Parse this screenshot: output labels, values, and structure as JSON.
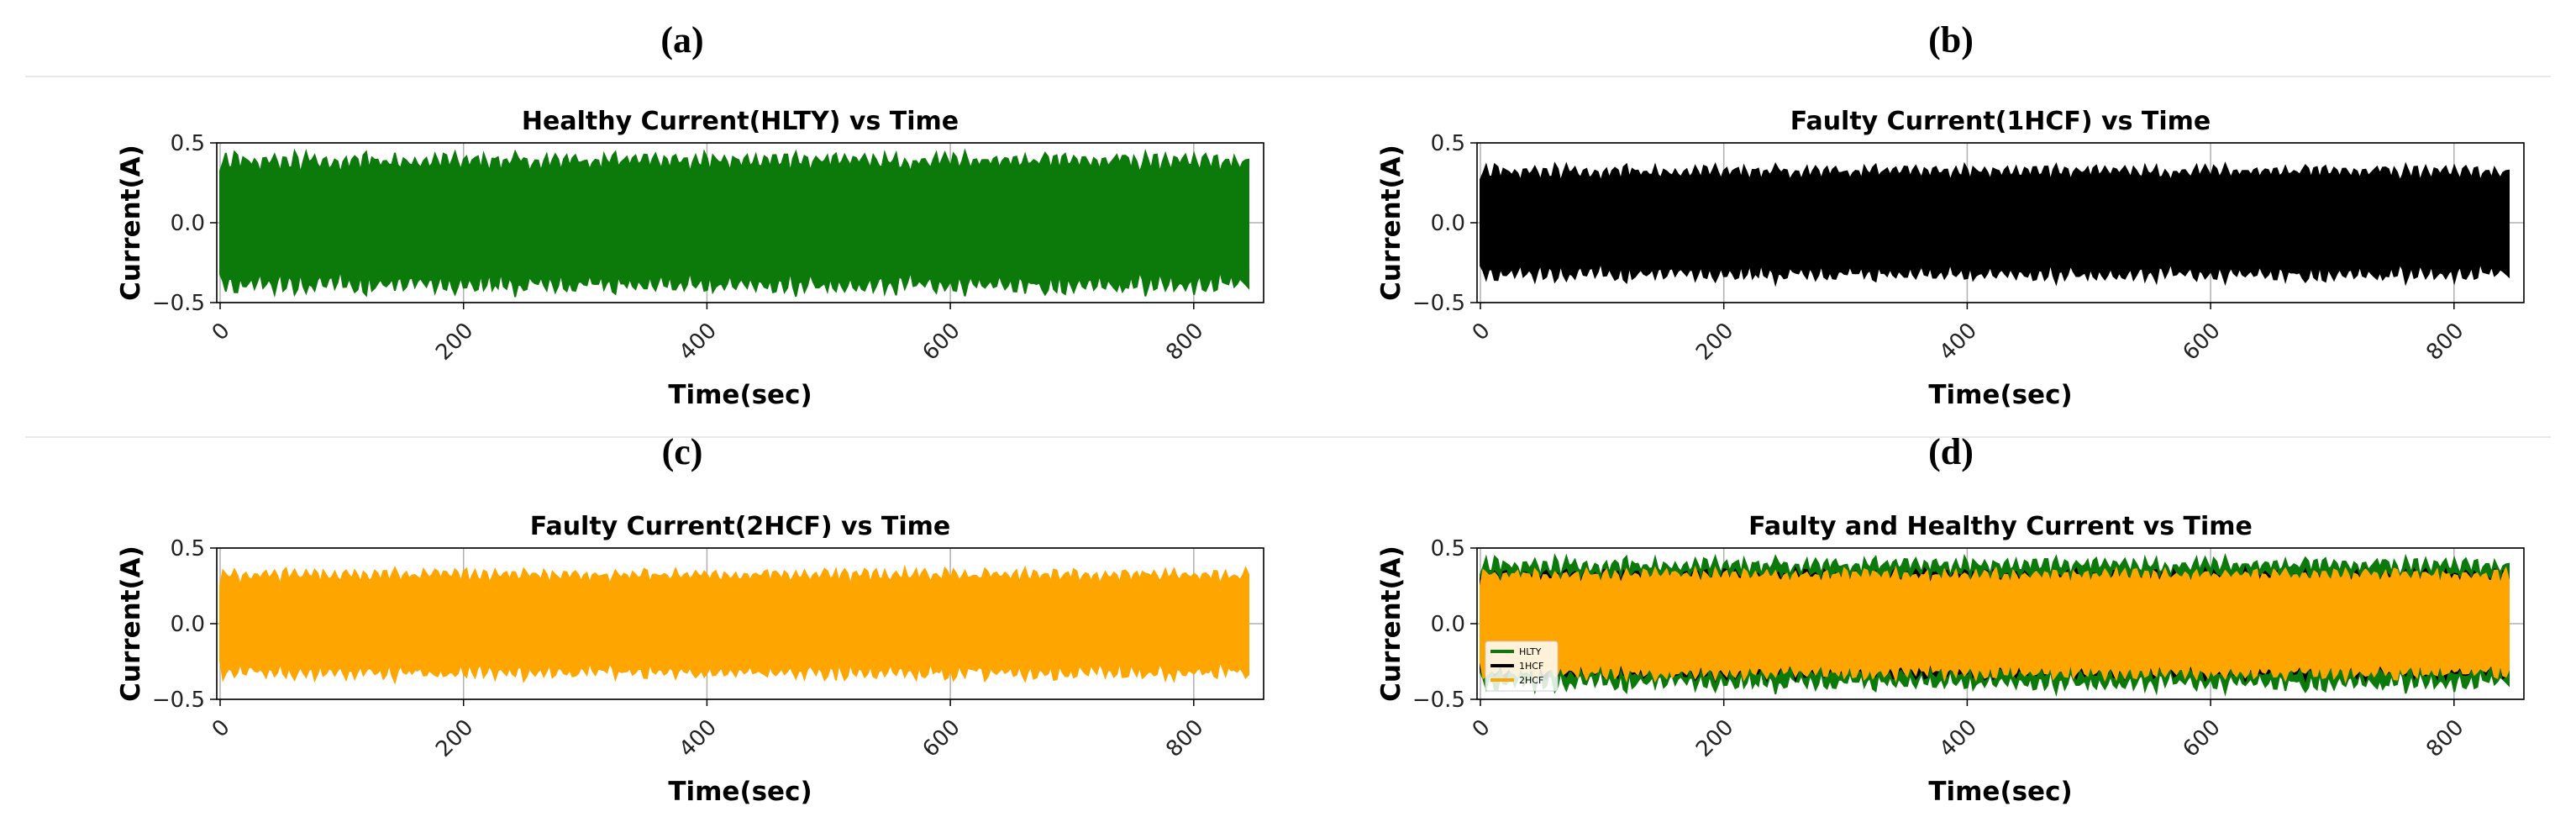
{
  "panel_labels": [
    "(a)",
    "(b)",
    "(c)",
    "(d)"
  ],
  "chart_data": [
    {
      "type": "line",
      "title": "Healthy Current(HLTY) vs Time",
      "xlabel": "Time(sec)",
      "ylabel": "Current(A)",
      "xlim": [
        0,
        845
      ],
      "ylim": [
        -0.5,
        0.5
      ],
      "xticks": [
        0,
        200,
        400,
        600,
        800
      ],
      "yticks": [
        -0.5,
        0.0,
        0.5
      ],
      "ytick_labels": [
        "−0.5",
        "0.0",
        "0.5"
      ],
      "grid": true,
      "series": [
        {
          "color": "#0b7a0b",
          "amplitude_range": [
            0.3,
            0.45
          ],
          "mean_amplitude": 0.42
        }
      ]
    },
    {
      "type": "line",
      "title": "Faulty Current(1HCF) vs Time",
      "xlabel": "Time(sec)",
      "ylabel": "Current(A)",
      "xlim": [
        0,
        845
      ],
      "ylim": [
        -0.5,
        0.5
      ],
      "xticks": [
        0,
        200,
        400,
        600,
        800
      ],
      "yticks": [
        -0.5,
        0.0,
        0.5
      ],
      "ytick_labels": [
        "−0.5",
        "0.0",
        "0.5"
      ],
      "grid": true,
      "series": [
        {
          "color": "#000000",
          "amplitude_range": [
            0.25,
            0.37
          ],
          "mean_amplitude": 0.34
        }
      ]
    },
    {
      "type": "line",
      "title": "Faulty Current(2HCF) vs Time",
      "xlabel": "Time(sec)",
      "ylabel": "Current(A)",
      "xlim": [
        0,
        845
      ],
      "ylim": [
        -0.5,
        0.5
      ],
      "xticks": [
        0,
        200,
        400,
        600,
        800
      ],
      "yticks": [
        -0.5,
        0.0,
        0.5
      ],
      "ytick_labels": [
        "−0.5",
        "0.0",
        "0.5"
      ],
      "grid": true,
      "series": [
        {
          "color": "#ffa500",
          "amplitude_range": [
            0.25,
            0.37
          ],
          "mean_amplitude": 0.34
        }
      ]
    },
    {
      "type": "line",
      "title": "Faulty and Healthy Current vs Time",
      "xlabel": "Time(sec)",
      "ylabel": "Current(A)",
      "xlim": [
        0,
        845
      ],
      "ylim": [
        -0.5,
        0.5
      ],
      "xticks": [
        0,
        200,
        400,
        600,
        800
      ],
      "yticks": [
        -0.5,
        0.0,
        0.5
      ],
      "ytick_labels": [
        "−0.5",
        "0.0",
        "0.5"
      ],
      "grid": true,
      "legend": "lower-left",
      "series": [
        {
          "name": "HLTY",
          "color": "#0b7a0b",
          "amplitude_range": [
            0.3,
            0.45
          ],
          "mean_amplitude": 0.42
        },
        {
          "name": "1HCF",
          "color": "#000000",
          "amplitude_range": [
            0.25,
            0.37
          ],
          "mean_amplitude": 0.34
        },
        {
          "name": "2HCF",
          "color": "#ffa500",
          "amplitude_range": [
            0.25,
            0.37
          ],
          "mean_amplitude": 0.34
        }
      ]
    }
  ]
}
